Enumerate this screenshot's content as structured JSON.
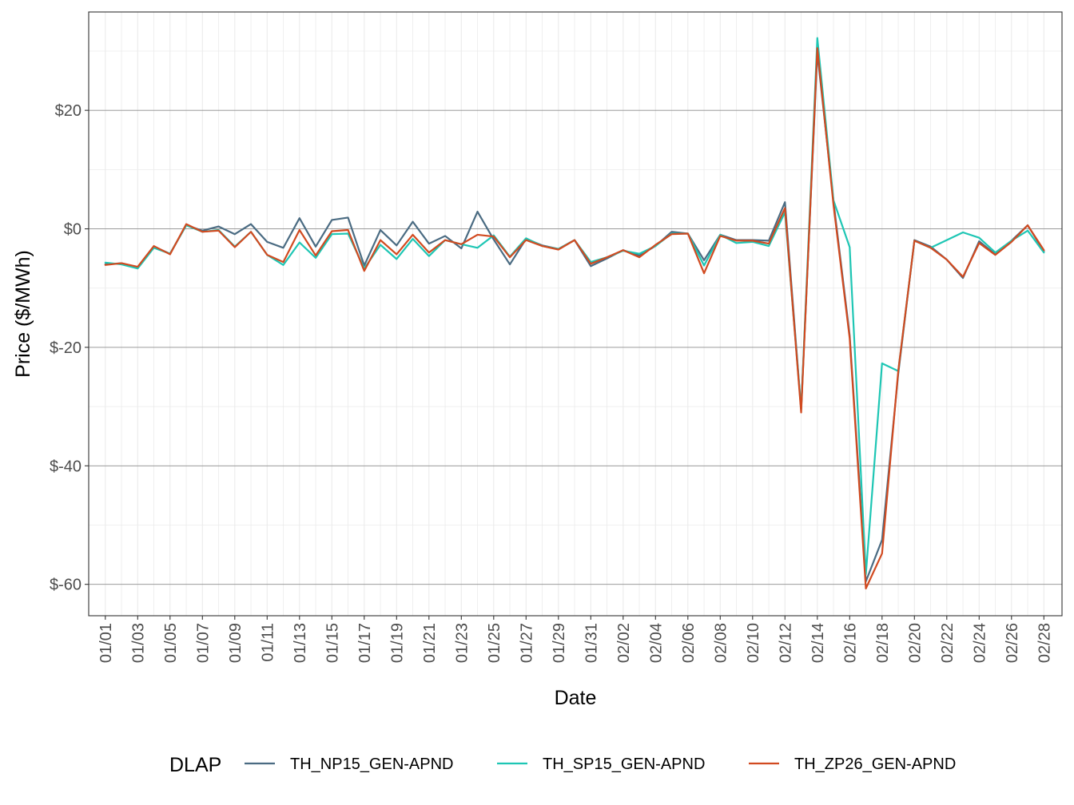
{
  "chart_data": {
    "type": "line",
    "xlabel": "Date",
    "ylabel": "Price ($/MWh)",
    "ylim": [
      -65.3,
      36.6
    ],
    "y_ticks": [
      {
        "value": 20,
        "label": "$20"
      },
      {
        "value": 0,
        "label": "$0"
      },
      {
        "value": -20,
        "label": "$-20"
      },
      {
        "value": -40,
        "label": "$-40"
      },
      {
        "value": -60,
        "label": "$-60"
      }
    ],
    "x_tick_labels": [
      "01/01",
      "01/03",
      "01/05",
      "01/07",
      "01/09",
      "01/11",
      "01/13",
      "01/15",
      "01/17",
      "01/19",
      "01/21",
      "01/23",
      "01/25",
      "01/27",
      "01/29",
      "01/31",
      "02/02",
      "02/04",
      "02/06",
      "02/08",
      "02/10",
      "02/12",
      "02/14",
      "02/16",
      "02/18",
      "02/20",
      "02/22",
      "02/24",
      "02/26",
      "02/28"
    ],
    "x": [
      "01/01",
      "01/02",
      "01/03",
      "01/04",
      "01/05",
      "01/06",
      "01/07",
      "01/08",
      "01/09",
      "01/10",
      "01/11",
      "01/12",
      "01/13",
      "01/14",
      "01/15",
      "01/16",
      "01/17",
      "01/18",
      "01/19",
      "01/20",
      "01/21",
      "01/22",
      "01/23",
      "01/24",
      "01/25",
      "01/26",
      "01/27",
      "01/28",
      "01/29",
      "01/30",
      "01/31",
      "02/01",
      "02/02",
      "02/03",
      "02/04",
      "02/05",
      "02/06",
      "02/07",
      "02/08",
      "02/09",
      "02/10",
      "02/11",
      "02/12",
      "02/13",
      "02/14",
      "02/15",
      "02/16",
      "02/17",
      "02/18",
      "02/19",
      "02/20",
      "02/21",
      "02/22",
      "02/23",
      "02/24",
      "02/25",
      "02/26",
      "02/27",
      "02/28"
    ],
    "legend_title": "DLAP",
    "legend_position": "bottom",
    "grid": true,
    "series": [
      {
        "name": "TH_NP15_GEN-APND",
        "color": "#4a6b82",
        "values": [
          -6.0,
          -5.8,
          -6.5,
          -3.0,
          -4.2,
          0.6,
          -0.3,
          0.4,
          -0.9,
          0.8,
          -2.2,
          -3.2,
          1.8,
          -3.0,
          1.5,
          1.9,
          -6.2,
          -0.2,
          -2.8,
          1.2,
          -2.5,
          -1.2,
          -3.3,
          2.9,
          -1.8,
          -6.0,
          -1.7,
          -2.8,
          -3.4,
          -1.9,
          -6.3,
          -5.0,
          -3.6,
          -4.5,
          -2.9,
          -0.5,
          -0.8,
          -5.3,
          -1.0,
          -1.9,
          -1.9,
          -2.0,
          4.5,
          -30.5,
          29.7,
          4.6,
          -18.0,
          -59.5,
          -52.5,
          -24.5,
          -1.9,
          -3.0,
          -5.2,
          -8.3,
          -2.1,
          -4.3,
          -2.0,
          0.6,
          -3.8
        ]
      },
      {
        "name": "TH_SP15_GEN-APND",
        "color": "#1ec6b4",
        "values": [
          -5.7,
          -6.0,
          -6.7,
          -3.2,
          -4.2,
          0.6,
          -0.5,
          -0.2,
          -3.0,
          -0.5,
          -4.4,
          -6.1,
          -2.3,
          -4.9,
          -0.9,
          -0.8,
          -6.7,
          -2.7,
          -5.1,
          -1.7,
          -4.6,
          -1.9,
          -2.6,
          -3.2,
          -1.1,
          -4.7,
          -1.6,
          -2.9,
          -3.4,
          -1.9,
          -5.6,
          -4.8,
          -3.7,
          -4.2,
          -2.9,
          -0.8,
          -0.8,
          -6.2,
          -1.0,
          -2.4,
          -2.2,
          -2.9,
          2.8,
          -30.5,
          32.2,
          4.8,
          -3.1,
          -58.3,
          -22.7,
          -24.0,
          -2.0,
          -3.2,
          -1.9,
          -0.6,
          -1.5,
          -4.0,
          -2.0,
          -0.3,
          -4.0
        ]
      },
      {
        "name": "TH_ZP26_GEN-APND",
        "color": "#d14a20",
        "values": [
          -6.1,
          -5.8,
          -6.4,
          -2.9,
          -4.3,
          0.8,
          -0.5,
          -0.3,
          -3.1,
          -0.5,
          -4.4,
          -5.6,
          -0.2,
          -4.5,
          -0.4,
          -0.2,
          -7.1,
          -1.9,
          -4.3,
          -1.0,
          -4.0,
          -1.9,
          -2.6,
          -1.0,
          -1.3,
          -4.8,
          -1.9,
          -2.9,
          -3.5,
          -1.9,
          -5.9,
          -4.8,
          -3.6,
          -4.8,
          -2.7,
          -0.9,
          -0.8,
          -7.5,
          -1.2,
          -2.0,
          -2.0,
          -2.5,
          3.5,
          -31.0,
          30.5,
          4.0,
          -18.5,
          -60.7,
          -54.8,
          -24.0,
          -2.0,
          -3.2,
          -5.2,
          -8.1,
          -2.4,
          -4.4,
          -2.2,
          0.6,
          -3.6
        ]
      }
    ]
  }
}
